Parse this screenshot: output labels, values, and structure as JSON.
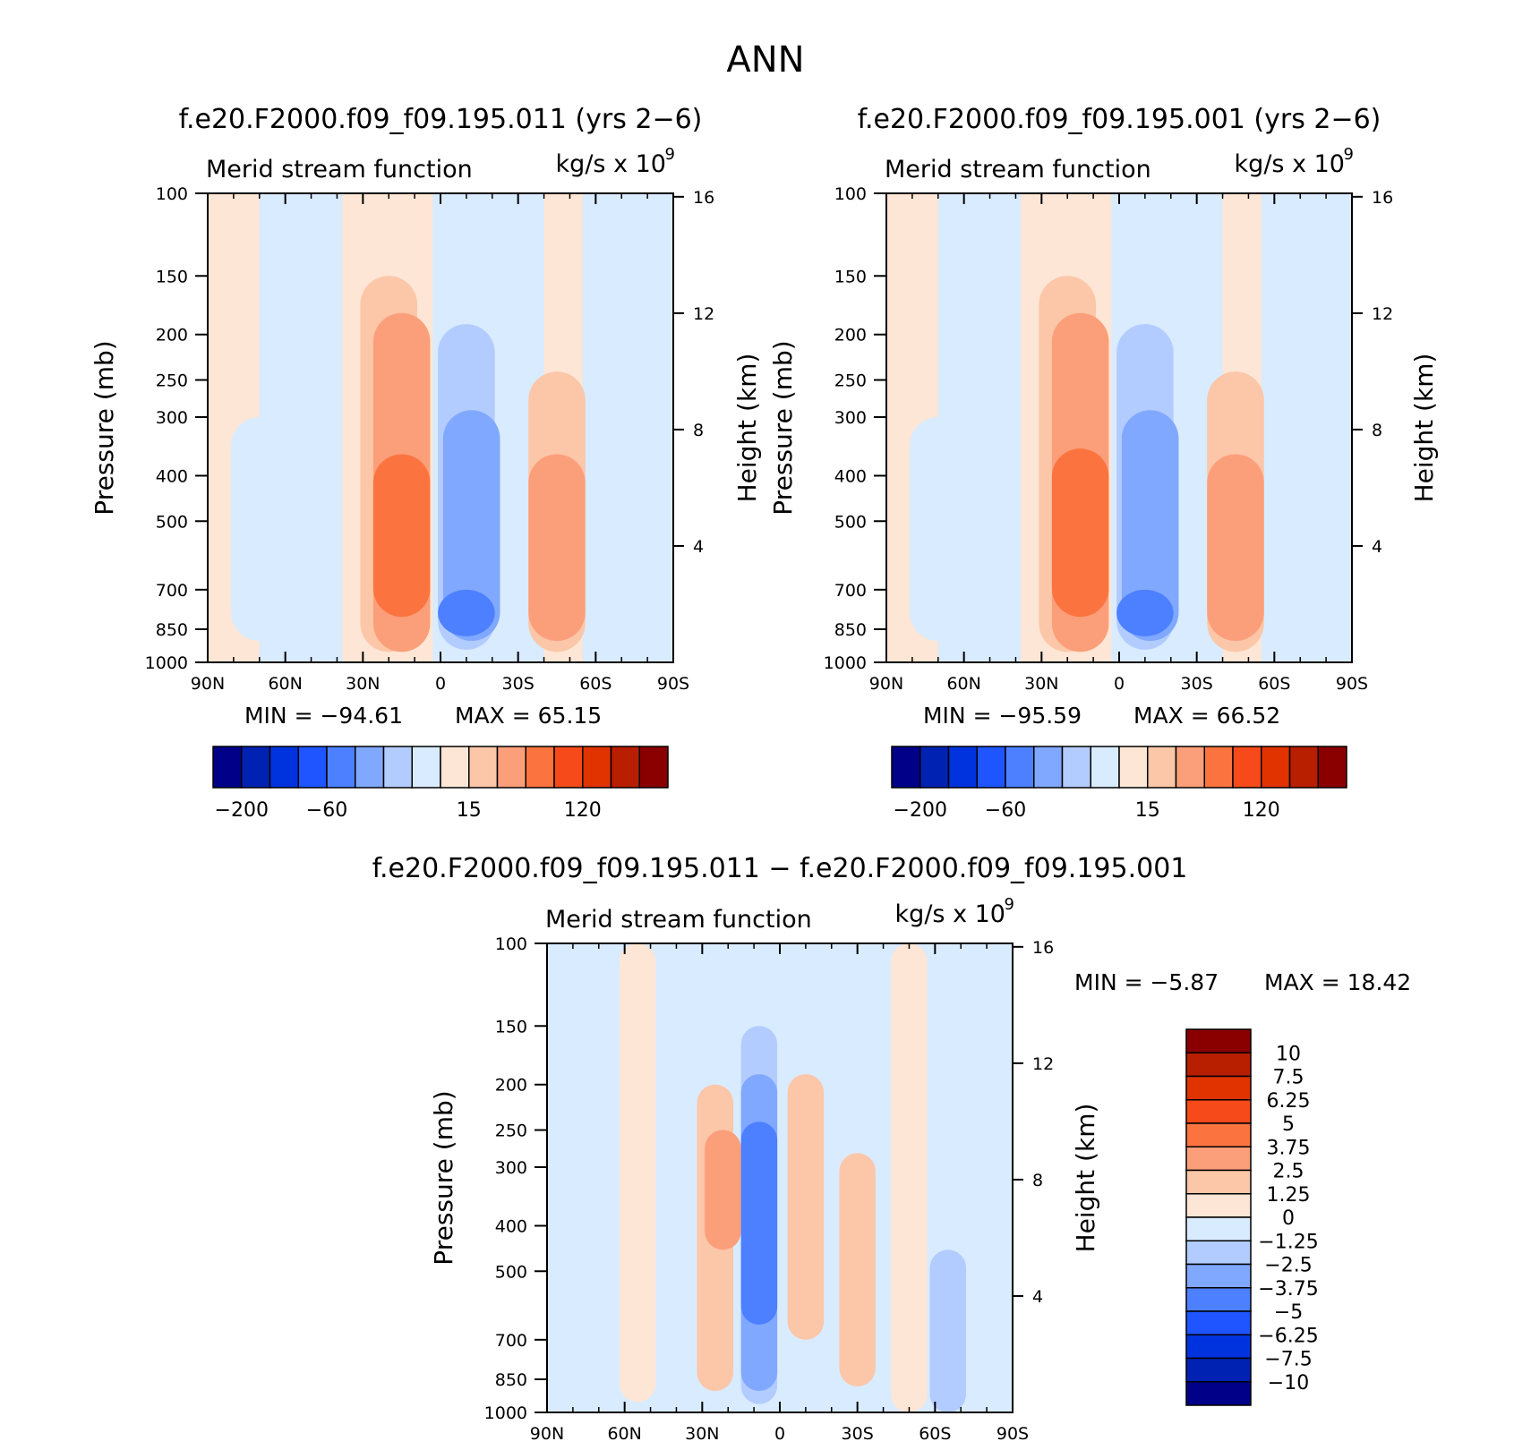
{
  "figure": {
    "title": "ANN"
  },
  "colors": {
    "main": [
      "#000088",
      "#0022b3",
      "#0033dd",
      "#1e55ff",
      "#4d80ff",
      "#80a8ff",
      "#b3ccff",
      "#d9ebff",
      "#fde6d5",
      "#fcc6a8",
      "#fb9f7a",
      "#fb7440",
      "#f64a1a",
      "#e03300",
      "#b81e00",
      "#8a0000"
    ],
    "diff": [
      "#000088",
      "#0022b3",
      "#0033dd",
      "#1e55ff",
      "#4d80ff",
      "#80a8ff",
      "#b3ccff",
      "#d9ebff",
      "#fde6d5",
      "#fcc6a8",
      "#fb9f7a",
      "#fb7440",
      "#f64a1a",
      "#e03300",
      "#b81e00",
      "#8a0000"
    ]
  },
  "chart_data": [
    {
      "type": "heatmap",
      "title": "f.e20.F2000.f09_f09.195.011 (yrs 2-6)",
      "subtitle_left": "Merid stream function",
      "subtitle_right": "kg/s x 10",
      "unit_exponent": "9",
      "ylabel": "Pressure (mb)",
      "ylabel_right": "Height (km)",
      "x_tick_labels": [
        "90N",
        "60N",
        "30N",
        "0",
        "30S",
        "60S",
        "90S"
      ],
      "x_ticks": [
        90,
        60,
        30,
        0,
        -30,
        -60,
        -90
      ],
      "y_tick_labels": [
        "100",
        "150",
        "200",
        "250",
        "300",
        "400",
        "500",
        "700",
        "850",
        "1000"
      ],
      "y_ticks": [
        100,
        150,
        200,
        250,
        300,
        400,
        500,
        700,
        850,
        1000
      ],
      "height_tick_labels": [
        "4",
        "8",
        "12",
        "16"
      ],
      "height_ticks": [
        4,
        8,
        12,
        16
      ],
      "min_label": "MIN = -94.61",
      "max_label": "MAX = 65.15",
      "min": -94.61,
      "max": 65.15,
      "colorbar_labels": [
        "-200",
        "-60",
        "15",
        "120"
      ],
      "cells": [
        {
          "lat": 70,
          "p0": 300,
          "p1": 900,
          "value": -20
        },
        {
          "lat": 20,
          "p0": 150,
          "p1": 950,
          "value": 20
        },
        {
          "lat": 15,
          "p0": 180,
          "p1": 950,
          "value": 40
        },
        {
          "lat": 15,
          "p0": 360,
          "p1": 800,
          "value": 60
        },
        {
          "lat": -10,
          "p0": 160,
          "p1": 960,
          "value": -20
        },
        {
          "lat": -10,
          "p0": 190,
          "p1": 940,
          "value": -40
        },
        {
          "lat": -12,
          "p0": 290,
          "p1": 900,
          "value": -60
        },
        {
          "lat": -10,
          "p0": 700,
          "p1": 880,
          "value": -90
        },
        {
          "lat": -45,
          "p0": 240,
          "p1": 950,
          "value": 20
        },
        {
          "lat": -45,
          "p0": 360,
          "p1": 900,
          "value": 40
        }
      ]
    },
    {
      "type": "heatmap",
      "title": "f.e20.F2000.f09_f09.195.001 (yrs 2-6)",
      "subtitle_left": "Merid stream function",
      "subtitle_right": "kg/s x 10",
      "unit_exponent": "9",
      "ylabel": "Pressure (mb)",
      "ylabel_right": "Height (km)",
      "x_tick_labels": [
        "90N",
        "60N",
        "30N",
        "0",
        "30S",
        "60S",
        "90S"
      ],
      "x_ticks": [
        90,
        60,
        30,
        0,
        -30,
        -60,
        -90
      ],
      "y_tick_labels": [
        "100",
        "150",
        "200",
        "250",
        "300",
        "400",
        "500",
        "700",
        "850",
        "1000"
      ],
      "y_ticks": [
        100,
        150,
        200,
        250,
        300,
        400,
        500,
        700,
        850,
        1000
      ],
      "height_tick_labels": [
        "4",
        "8",
        "12",
        "16"
      ],
      "height_ticks": [
        4,
        8,
        12,
        16
      ],
      "min_label": "MIN = -95.59",
      "max_label": "MAX = 66.52",
      "min": -95.59,
      "max": 66.52,
      "colorbar_labels": [
        "-200",
        "-60",
        "15",
        "120"
      ],
      "cells": [
        {
          "lat": 70,
          "p0": 300,
          "p1": 900,
          "value": -20
        },
        {
          "lat": 20,
          "p0": 150,
          "p1": 950,
          "value": 20
        },
        {
          "lat": 15,
          "p0": 180,
          "p1": 950,
          "value": 40
        },
        {
          "lat": 15,
          "p0": 350,
          "p1": 800,
          "value": 60
        },
        {
          "lat": -10,
          "p0": 150,
          "p1": 960,
          "value": -20
        },
        {
          "lat": -10,
          "p0": 190,
          "p1": 940,
          "value": -40
        },
        {
          "lat": -12,
          "p0": 290,
          "p1": 900,
          "value": -60
        },
        {
          "lat": -10,
          "p0": 700,
          "p1": 880,
          "value": -90
        },
        {
          "lat": -45,
          "p0": 240,
          "p1": 950,
          "value": 20
        },
        {
          "lat": -45,
          "p0": 360,
          "p1": 900,
          "value": 40
        }
      ]
    },
    {
      "type": "heatmap",
      "title": "f.e20.F2000.f09_f09.195.011 - f.e20.F2000.f09_f09.195.001",
      "subtitle_left": "Merid stream function",
      "subtitle_right": "kg/s x 10",
      "unit_exponent": "9",
      "ylabel": "Pressure (mb)",
      "ylabel_right": "Height (km)",
      "x_tick_labels": [
        "90N",
        "60N",
        "30N",
        "0",
        "30S",
        "60S",
        "90S"
      ],
      "x_ticks": [
        90,
        60,
        30,
        0,
        -30,
        -60,
        -90
      ],
      "y_tick_labels": [
        "100",
        "150",
        "200",
        "250",
        "300",
        "400",
        "500",
        "700",
        "850",
        "1000"
      ],
      "y_ticks": [
        100,
        150,
        200,
        250,
        300,
        400,
        500,
        700,
        850,
        1000
      ],
      "height_tick_labels": [
        "4",
        "8",
        "12",
        "16"
      ],
      "height_ticks": [
        4,
        8,
        12,
        16
      ],
      "min_label": "MIN =  -5.87",
      "max_label": "MAX =  18.42",
      "min": -5.87,
      "max": 18.42,
      "colorbar_labels": [
        "10",
        "7.5",
        "6.25",
        "5",
        "3.75",
        "2.5",
        "1.25",
        "0",
        "-1.25",
        "-2.5",
        "-3.75",
        "-5",
        "-6.25",
        "-7.5",
        "-10"
      ],
      "cells": [
        {
          "lat": 80,
          "p0": 100,
          "p1": 1000,
          "value": -0.5
        },
        {
          "lat": 55,
          "p0": 100,
          "p1": 950,
          "value": 0.5
        },
        {
          "lat": 25,
          "p0": 200,
          "p1": 900,
          "value": 1.5
        },
        {
          "lat": 22,
          "p0": 250,
          "p1": 450,
          "value": 2.8
        },
        {
          "lat": 8,
          "p0": 150,
          "p1": 960,
          "value": -1.5
        },
        {
          "lat": 8,
          "p0": 190,
          "p1": 900,
          "value": -3
        },
        {
          "lat": 8,
          "p0": 240,
          "p1": 650,
          "value": -4
        },
        {
          "lat": -10,
          "p0": 190,
          "p1": 700,
          "value": 1.5
        },
        {
          "lat": -30,
          "p0": 280,
          "p1": 880,
          "value": 1.5
        },
        {
          "lat": -50,
          "p0": 100,
          "p1": 1000,
          "value": 0.5
        },
        {
          "lat": -65,
          "p0": 450,
          "p1": 1000,
          "value": -1.5
        }
      ]
    }
  ]
}
